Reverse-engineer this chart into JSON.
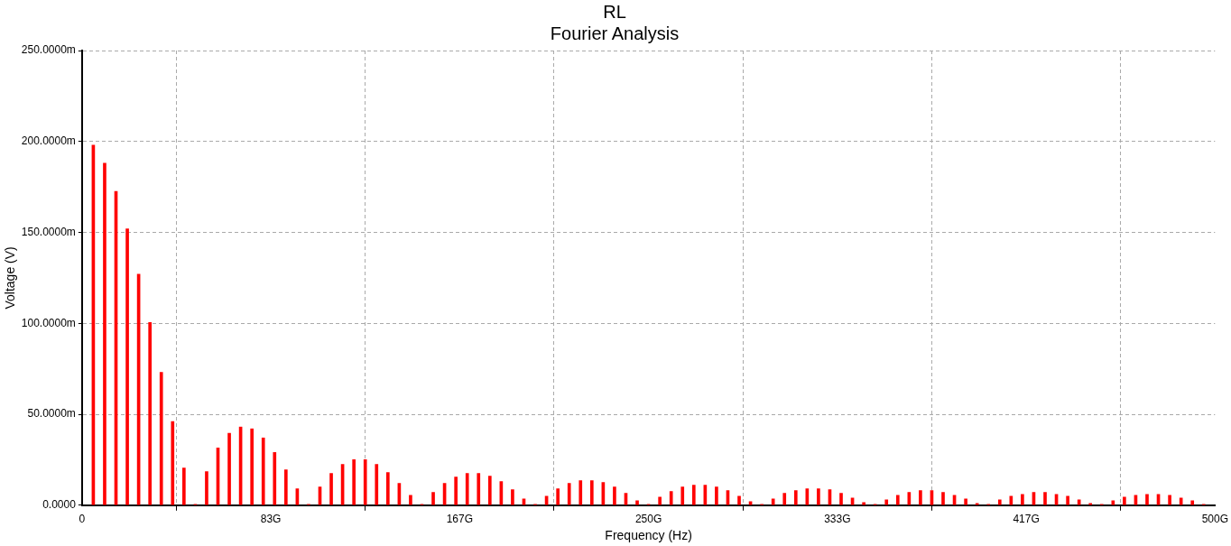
{
  "chart_data": {
    "type": "bar",
    "title": "RL",
    "subtitle": "Fourier Analysis",
    "xlabel": "Frequency (Hz)",
    "ylabel": "Voltage (V)",
    "x": [
      5,
      10,
      15,
      20,
      25,
      30,
      35,
      40,
      45,
      50,
      55,
      60,
      65,
      70,
      75,
      80,
      85,
      90,
      95,
      100,
      105,
      110,
      115,
      120,
      125,
      130,
      135,
      140,
      145,
      150,
      155,
      160,
      165,
      170,
      175,
      180,
      185,
      190,
      195,
      200,
      205,
      210,
      215,
      220,
      225,
      230,
      235,
      240,
      245,
      250,
      255,
      260,
      265,
      270,
      275,
      280,
      285,
      290,
      295,
      300,
      305,
      310,
      315,
      320,
      325,
      330,
      335,
      340,
      345,
      350,
      355,
      360,
      365,
      370,
      375,
      380,
      385,
      390,
      395,
      400,
      405,
      410,
      415,
      420,
      425,
      430,
      435,
      440,
      445,
      450,
      455,
      460,
      465,
      470,
      475,
      480,
      485,
      490,
      495
    ],
    "values": [
      198,
      188,
      172.5,
      152,
      127,
      100.5,
      73,
      46,
      20.5,
      0.5,
      18.5,
      31.5,
      39.5,
      43,
      42,
      37,
      29,
      19.5,
      9,
      0.5,
      10,
      17.5,
      22.5,
      25,
      25,
      22.5,
      18,
      12,
      5.5,
      0.5,
      7,
      12,
      15.5,
      17.5,
      17.5,
      16,
      13,
      8.5,
      3.5,
      0.5,
      5,
      9,
      12,
      13.5,
      13.5,
      12.5,
      10,
      6.5,
      2.5,
      0.5,
      4.5,
      7.5,
      10,
      11,
      11,
      10,
      8,
      5,
      2,
      0.5,
      3.5,
      6.5,
      8,
      9,
      9,
      8.5,
      6.5,
      4,
      1.5,
      0.5,
      3,
      5.5,
      7,
      8,
      8,
      7,
      5.5,
      3.5,
      1,
      0.5,
      3,
      5,
      6,
      7,
      7,
      6,
      5,
      3,
      1,
      0.5,
      2.5,
      4.5,
      5.5,
      6,
      6,
      5.5,
      4,
      2.5,
      0.5
    ],
    "color": "#ff0000",
    "xlim": [
      0,
      500
    ],
    "xticks": [
      0,
      {
        "value": 83.333,
        "label": "83G"
      },
      {
        "value": 166.667,
        "label": "167G"
      },
      {
        "value": 250,
        "label": "250G"
      },
      {
        "value": 333.333,
        "label": "333G"
      },
      {
        "value": 416.667,
        "label": "417G"
      },
      {
        "value": 500,
        "label": "500G"
      }
    ],
    "ylim": [
      0,
      250
    ],
    "yticks": [
      {
        "value": 0,
        "label": "0.0000"
      },
      {
        "value": 50,
        "label": "50.0000m"
      },
      {
        "value": 100,
        "label": "100.0000m"
      },
      {
        "value": 150,
        "label": "150.0000m"
      },
      {
        "value": 200,
        "label": "200.0000m"
      },
      {
        "value": 250,
        "label": "250.0000m"
      }
    ],
    "grid": true,
    "legend": false
  }
}
